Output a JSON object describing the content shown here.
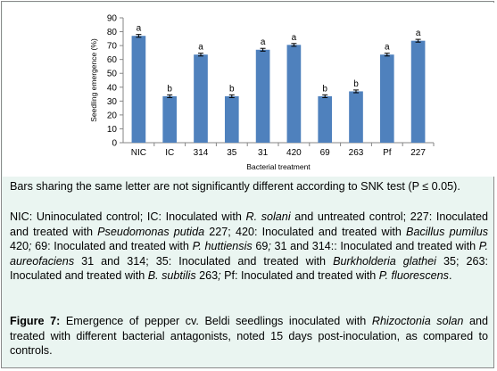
{
  "chart_data": {
    "type": "bar",
    "categories": [
      "NIC",
      "IC",
      "314",
      "35",
      "31",
      "420",
      "69",
      "263",
      "Pf",
      "227"
    ],
    "values": [
      77,
      33.5,
      63.5,
      33.5,
      67,
      70.5,
      33.5,
      37,
      63.5,
      73.5
    ],
    "errors": [
      1,
      1,
      1,
      1,
      1,
      1,
      1,
      1,
      1,
      1
    ],
    "letters": [
      "a",
      "b",
      "a",
      "b",
      "a",
      "a",
      "b",
      "b",
      "a",
      "a"
    ],
    "xlabel": "Bacterial treatment",
    "ylabel": "Seedling emergence (%)",
    "ylim": [
      0,
      90
    ],
    "yticks": [
      "0",
      "10",
      "20",
      "30",
      "40",
      "50",
      "60",
      "70",
      "80",
      "90"
    ],
    "grid": false,
    "bar_color": "#4f81bd"
  },
  "text": {
    "note": "Bars sharing the same letter are not significantly different according to SNK test (P ≤ 0.05).",
    "legend_parts": [
      {
        "t": "NIC: Uninoculated control; IC: Inoculated with ",
        "i": false
      },
      {
        "t": "R. solani",
        "i": true
      },
      {
        "t": " and untreated control; 227: Inoculated and treated with ",
        "i": false
      },
      {
        "t": "Pseudomonas putida",
        "i": true
      },
      {
        "t": " 227; 420: Inoculated and treated with ",
        "i": false
      },
      {
        "t": "Bacillus pumilus",
        "i": true
      },
      {
        "t": " 420",
        "i": false
      },
      {
        "t": ";",
        "i": true
      },
      {
        "t": " 69: Inoculated and treated with ",
        "i": false
      },
      {
        "t": "P. huttiensis",
        "i": true
      },
      {
        "t": " 69",
        "i": false
      },
      {
        "t": ";",
        "i": true
      },
      {
        "t": " 31 and 314:: Inoculated and treated with ",
        "i": false
      },
      {
        "t": "P. aureofaciens",
        "i": true
      },
      {
        "t": " 31 and 314; 35: Inoculated and treated with ",
        "i": false
      },
      {
        "t": "Burkholderia glathei",
        "i": true
      },
      {
        "t": " 35; 263: Inoculated and treated with ",
        "i": false
      },
      {
        "t": "B. subtilis",
        "i": true
      },
      {
        "t": " 263",
        "i": false
      },
      {
        "t": ";",
        "i": true
      },
      {
        "t": " Pf: Inoculated and treated with ",
        "i": false
      },
      {
        "t": "P. fluorescens",
        "i": true
      },
      {
        "t": ".",
        "i": false
      }
    ],
    "caption_label": "Figure 7:",
    "caption_parts": [
      {
        "t": " Emergence of pepper cv. Beldi seedlings inoculated with ",
        "i": false
      },
      {
        "t": "Rhizoctonia solan",
        "i": true
      },
      {
        "t": " and treated with different bacterial antagonists, noted 15 days post-inoculation, as compared to controls.",
        "i": false
      }
    ]
  }
}
